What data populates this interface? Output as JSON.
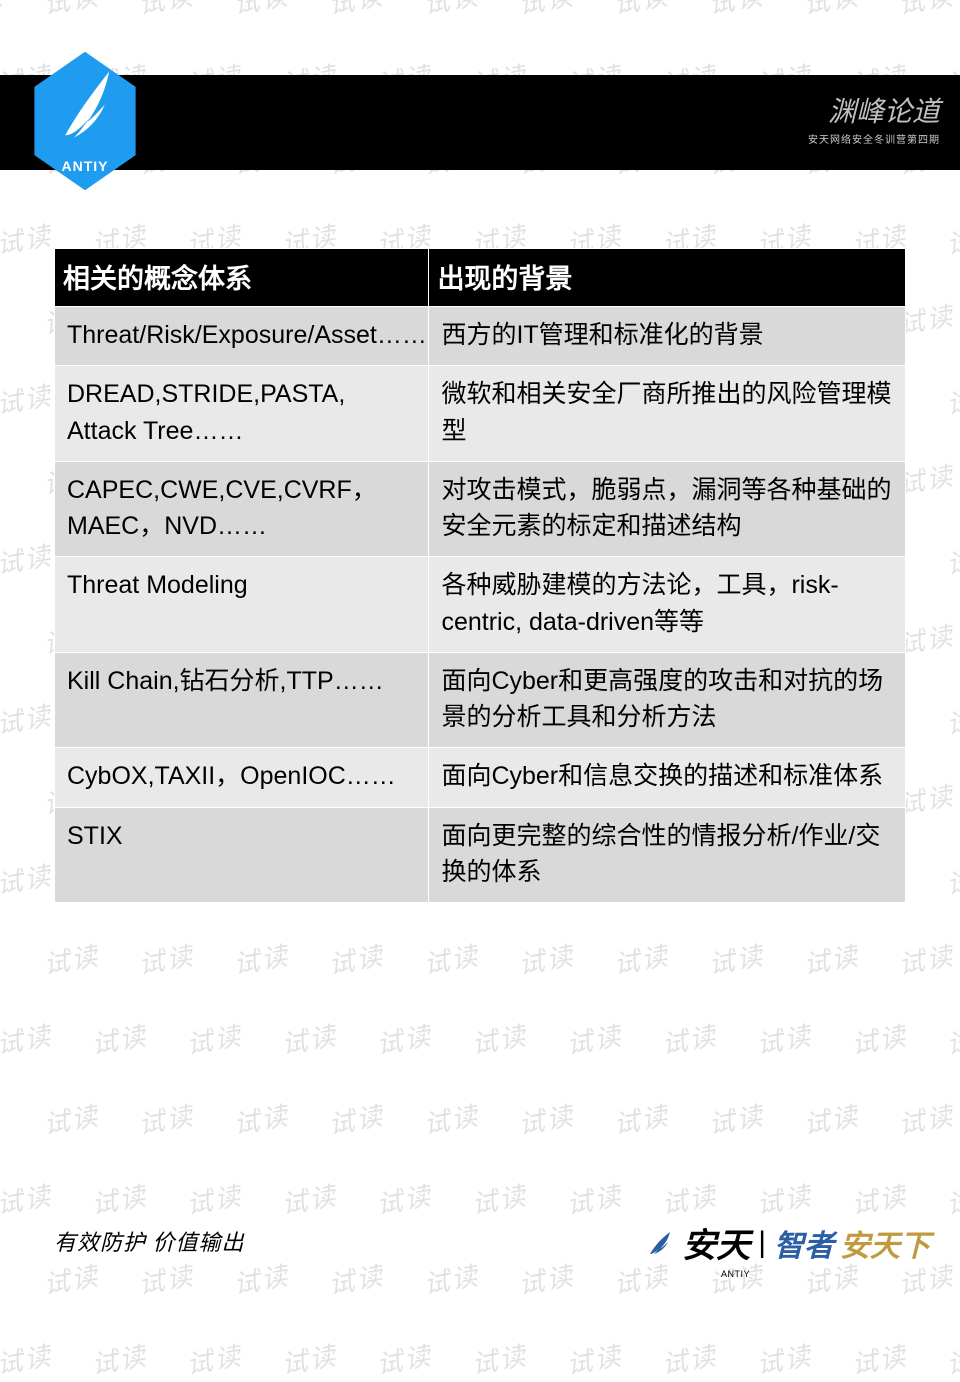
{
  "watermark": {
    "text": "试读",
    "color": "#000000",
    "opacity": 0.12,
    "fontsize": 26,
    "angle": -10
  },
  "header": {
    "logo_label": "ANTIY",
    "logo_bg_color": "#1f9cf0",
    "calligraphy": "渊峰论道",
    "subtitle": "安天网络安全冬训营第四期",
    "bar_color": "#000000"
  },
  "table": {
    "type": "table",
    "columns": [
      "相关的概念体系",
      "出现的背景"
    ],
    "col_widths_pct": [
      44,
      56
    ],
    "header_bg": "#000000",
    "header_fg": "#ffffff",
    "header_fontsize": 27,
    "cell_fontsize": 25,
    "row_odd_bg": "#d9d9d9",
    "row_even_bg": "#e9e9e9",
    "border_color": "#ffffff",
    "rows": [
      [
        "Threat/Risk/Exposure/Asset……",
        "西方的IT管理和标准化的背景"
      ],
      [
        "DREAD,STRIDE,PASTA, Attack Tree……",
        "微软和相关安全厂商所推出的风险管理模型"
      ],
      [
        "CAPEC,CWE,CVE,CVRF，MAEC，NVD……",
        "对攻击模式，脆弱点，漏洞等各种基础的安全元素的标定和描述结构"
      ],
      [
        "Threat Modeling",
        "各种威胁建模的方法论，工具，risk-centric, data-driven等等"
      ],
      [
        "Kill Chain,钻石分析,TTP……",
        "面向Cyber和更高强度的攻击和对抗的场景的分析工具和分析方法"
      ],
      [
        "CybOX,TAXII，OpenIOC……",
        "面向Cyber和信息交换的描述和标准体系"
      ],
      [
        "STIX",
        "面向更完整的综合性的情报分析/作业/交换的体系"
      ]
    ]
  },
  "footer": {
    "slogan": "有效防护 价值输出",
    "brand_name": "安天",
    "brand_sub": "ANTIY",
    "brand_tag_a": "智者",
    "brand_tag_b": "安天下",
    "brand_primary_color": "#000000",
    "brand_accent_a": "#2b5fa4",
    "brand_accent_b": "#c19a3f"
  }
}
